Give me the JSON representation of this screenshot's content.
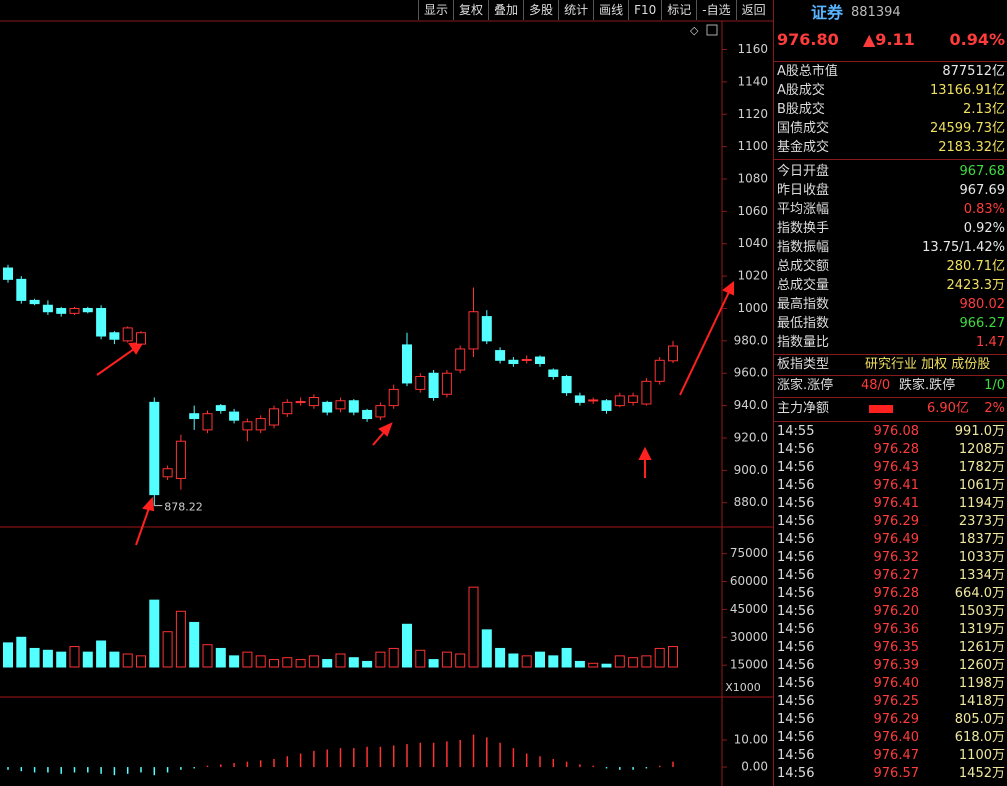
{
  "toolbar": [
    "显示",
    "复权",
    "叠加",
    "多股",
    "统计",
    "画线",
    "F10",
    "标记",
    "-自选",
    "返回"
  ],
  "quote": {
    "name": "证券",
    "code": "881394",
    "price": "976.80",
    "change": "▲9.11",
    "pct": "0.94%"
  },
  "stats": [
    {
      "label": "A股总市值",
      "value": "877512亿",
      "color": "#e8e8e8"
    },
    {
      "label": "A股成交",
      "value": "13166.91亿",
      "color": "#f0e060"
    },
    {
      "label": "B股成交",
      "value": "2.13亿",
      "color": "#f0e060"
    },
    {
      "label": "国债成交",
      "value": "24599.73亿",
      "color": "#f0e060"
    },
    {
      "label": "基金成交",
      "value": "2183.32亿",
      "color": "#f0e060"
    },
    {
      "label": "今日开盘",
      "value": "967.68",
      "color": "#3ddc3d"
    },
    {
      "label": "昨日收盘",
      "value": "967.69",
      "color": "#e8e8e8"
    },
    {
      "label": "平均涨幅",
      "value": "0.83%",
      "color": "#ff3c3c"
    },
    {
      "label": "指数换手",
      "value": "0.92%",
      "color": "#e8e8e8"
    },
    {
      "label": "指数振幅",
      "value": "13.75/1.42%",
      "color": "#e8e8e8"
    },
    {
      "label": "总成交额",
      "value": "280.71亿",
      "color": "#f0e060"
    },
    {
      "label": "总成交量",
      "value": "2423.3万",
      "color": "#f0e060"
    },
    {
      "label": "最高指数",
      "value": "980.02",
      "color": "#ff3c3c"
    },
    {
      "label": "最低指数",
      "value": "966.27",
      "color": "#3ddc3d"
    },
    {
      "label": "指数量比",
      "value": "1.47",
      "color": "#ff3c3c"
    }
  ],
  "board": {
    "label": "板指类型",
    "value": "研究行业 加权 成份股"
  },
  "breadth": {
    "up_label": "涨家.涨停",
    "up_value": "48/0",
    "down_label": "跌家.跌停",
    "down_value": "1/0"
  },
  "main_force": {
    "label": "主力净额",
    "value": "6.90亿",
    "pct": "2%"
  },
  "trades": [
    [
      "14:55",
      "976.08",
      "991.0万"
    ],
    [
      "14:56",
      "976.28",
      "1208万"
    ],
    [
      "14:56",
      "976.43",
      "1782万"
    ],
    [
      "14:56",
      "976.41",
      "1061万"
    ],
    [
      "14:56",
      "976.41",
      "1194万"
    ],
    [
      "14:56",
      "976.29",
      "2373万"
    ],
    [
      "14:56",
      "976.49",
      "1837万"
    ],
    [
      "14:56",
      "976.32",
      "1033万"
    ],
    [
      "14:56",
      "976.27",
      "1334万"
    ],
    [
      "14:56",
      "976.28",
      "664.0万"
    ],
    [
      "14:56",
      "976.20",
      "1503万"
    ],
    [
      "14:56",
      "976.36",
      "1319万"
    ],
    [
      "14:56",
      "976.35",
      "1261万"
    ],
    [
      "14:56",
      "976.39",
      "1260万"
    ],
    [
      "14:56",
      "976.40",
      "1198万"
    ],
    [
      "14:56",
      "976.25",
      "1418万"
    ],
    [
      "14:56",
      "976.29",
      "805.0万"
    ],
    [
      "14:56",
      "976.40",
      "618.0万"
    ],
    [
      "14:56",
      "976.47",
      "1100万"
    ],
    [
      "14:56",
      "976.57",
      "1452万"
    ]
  ],
  "chart_data": [
    {
      "type": "candlestick",
      "up_color": "#ff3232",
      "down_color": "#54ffff",
      "open": [
        1025,
        1018,
        1005,
        1002,
        1000,
        997,
        1000,
        1000,
        985,
        980,
        978,
        942,
        896,
        895,
        935,
        925,
        940,
        936,
        925,
        925,
        928,
        935,
        942,
        940,
        942,
        938,
        943,
        937,
        933,
        940,
        977.5,
        950,
        960,
        947,
        962,
        975,
        995,
        974,
        968,
        968,
        970,
        962,
        958,
        946,
        943,
        943,
        940,
        942,
        941,
        955,
        967.68
      ],
      "high": [
        1027,
        1020,
        1006,
        1005,
        1001,
        1001,
        1001,
        1002,
        986,
        989,
        986,
        945,
        903,
        922,
        940,
        937,
        941,
        938,
        932,
        934,
        940,
        944,
        945,
        947,
        943,
        945,
        944,
        938,
        942,
        953,
        985,
        960,
        962,
        962,
        977,
        1013,
        999,
        976,
        970,
        971,
        971,
        963,
        959,
        948,
        945,
        944,
        948,
        948,
        957,
        970,
        980.02
      ],
      "low": [
        1016,
        1003,
        1002,
        996,
        995,
        996,
        997,
        981,
        978,
        979,
        977,
        878.22,
        894,
        888,
        925,
        923,
        935,
        929,
        918,
        923,
        926,
        933,
        940,
        938,
        934,
        936,
        934,
        930,
        931,
        938,
        952,
        948,
        943,
        945,
        960,
        970,
        978,
        966,
        964,
        966,
        964,
        956,
        946,
        940,
        941,
        935,
        939,
        940,
        940,
        953,
        966.27
      ],
      "close": [
        1018,
        1005,
        1003,
        998,
        997,
        1000,
        998,
        983,
        981,
        988,
        985,
        885,
        901,
        918,
        932,
        935,
        937,
        931,
        930,
        932,
        938,
        942,
        942.5,
        945,
        936,
        943,
        936,
        932,
        940,
        950,
        954,
        958,
        945,
        960,
        975,
        998,
        980,
        968,
        966,
        968.5,
        966,
        958,
        948,
        942,
        943.5,
        937,
        946,
        946,
        955,
        968,
        976.8
      ],
      "annotation": "878.22",
      "ylim": [
        865,
        1177
      ],
      "yticks": [
        {
          "value": 880,
          "label": "880.0"
        },
        {
          "value": 900,
          "label": "900.0"
        },
        {
          "value": 920,
          "label": "920.0"
        },
        {
          "value": 940,
          "label": "940.0"
        },
        {
          "value": 960,
          "label": "960.0"
        },
        {
          "value": 980,
          "label": "980.0"
        },
        1000,
        1020,
        1040,
        1060,
        1080,
        1100,
        1120,
        1140,
        1160
      ]
    },
    {
      "type": "bar",
      "unit_label": "X1000",
      "values": [
        27000,
        30000,
        24000,
        23000,
        22000,
        25000,
        22000,
        28000,
        22000,
        21000,
        20000,
        50000,
        33000,
        44000,
        38000,
        26000,
        24000,
        20000,
        22000,
        20000,
        18000,
        19000,
        18000,
        20000,
        18000,
        21000,
        19000,
        17000,
        22000,
        24000,
        37000,
        23000,
        18000,
        22000,
        21000,
        57000,
        34000,
        24000,
        21000,
        20000,
        22000,
        20000,
        24000,
        17000,
        16000,
        15500,
        20000,
        19000,
        20000,
        24000,
        25000
      ],
      "ylim": [
        14000,
        77000
      ],
      "yticks": [
        15000,
        30000,
        45000,
        60000,
        75000
      ]
    },
    {
      "type": "bar",
      "values": [
        -1,
        -1.5,
        -2,
        -2,
        -2.5,
        -2,
        -2,
        -2.5,
        -3,
        -2.5,
        -2,
        -3,
        -2,
        -1,
        -0.5,
        0.5,
        1,
        1.5,
        2,
        2.5,
        3,
        4,
        5,
        6,
        6.5,
        7,
        7,
        7.5,
        7.5,
        8,
        8.5,
        9,
        9,
        9.5,
        10,
        12,
        11,
        9,
        7,
        5,
        4,
        3,
        2,
        1,
        0.5,
        -0.5,
        -1,
        -1,
        -0.5,
        0.5,
        2
      ],
      "ylim": [
        -7,
        24.8
      ],
      "yticks": [
        {
          "value": 0,
          "label": "0.00"
        },
        {
          "value": 10,
          "label": "10.00"
        }
      ]
    }
  ]
}
